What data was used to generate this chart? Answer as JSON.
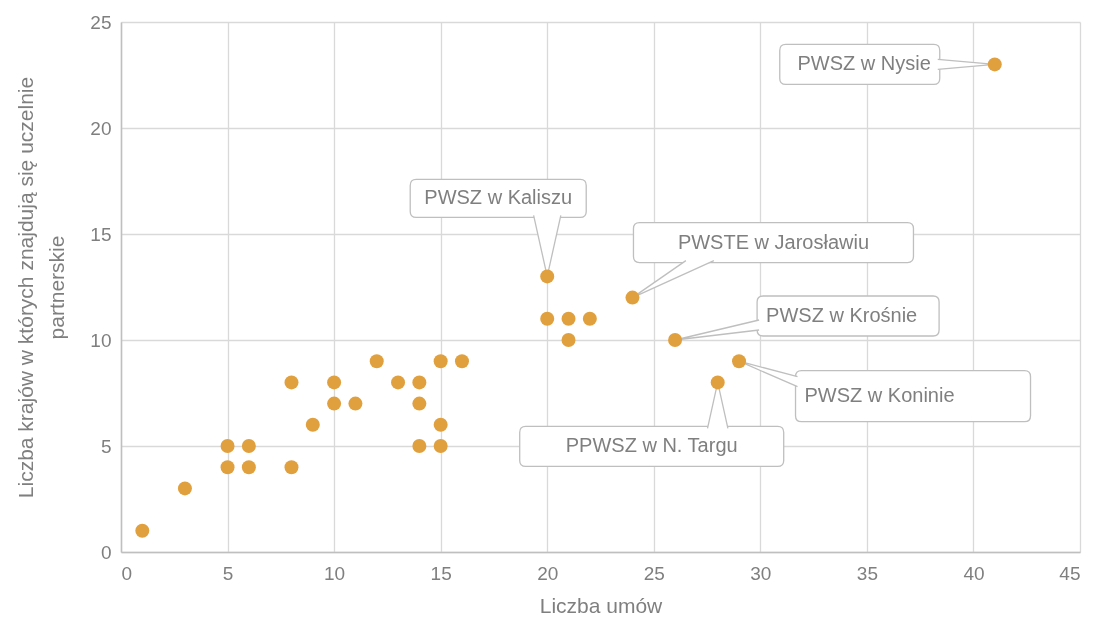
{
  "chart_data": {
    "type": "scatter",
    "xlabel": "Liczba umów",
    "ylabel": "Liczba krajów w których znajdują się uczelnie partnerskie",
    "x": [
      1,
      3,
      5,
      5,
      6,
      6,
      8,
      8,
      9,
      10,
      10,
      11,
      12,
      13,
      14,
      14,
      14,
      15,
      15,
      15,
      16,
      20,
      20,
      21,
      21,
      22,
      24,
      26,
      28,
      29,
      41
    ],
    "values": [
      1,
      3,
      5,
      4,
      5,
      4,
      8,
      4,
      6,
      8,
      7,
      7,
      9,
      8,
      8,
      7,
      5,
      9,
      6,
      5,
      9,
      13,
      11,
      11,
      10,
      11,
      12,
      10,
      8,
      9,
      23
    ],
    "color": "#e1a03e",
    "marker": "circle",
    "xlim": [
      0,
      45
    ],
    "xticks": [
      0,
      5,
      10,
      15,
      20,
      25,
      30,
      35,
      40,
      45
    ],
    "ylim": [
      0,
      25
    ],
    "yticks": [
      0,
      5,
      10,
      15,
      20,
      25
    ],
    "grid": true,
    "annotations": [
      {
        "text": "PWSZ w Nysie",
        "x": 41,
        "y": 23
      },
      {
        "text": "PWSZ w Kaliszu",
        "x": 20,
        "y": 13
      },
      {
        "text": "PWSTE w Jarosławiu",
        "x": 24,
        "y": 12
      },
      {
        "text": "PWSZ w Krośnie",
        "x": 26,
        "y": 10
      },
      {
        "text": "PWSZ w Koninie",
        "x": 29,
        "y": 9
      },
      {
        "text": "PPWSZ w N. Targu",
        "x": 28,
        "y": 8
      }
    ]
  }
}
